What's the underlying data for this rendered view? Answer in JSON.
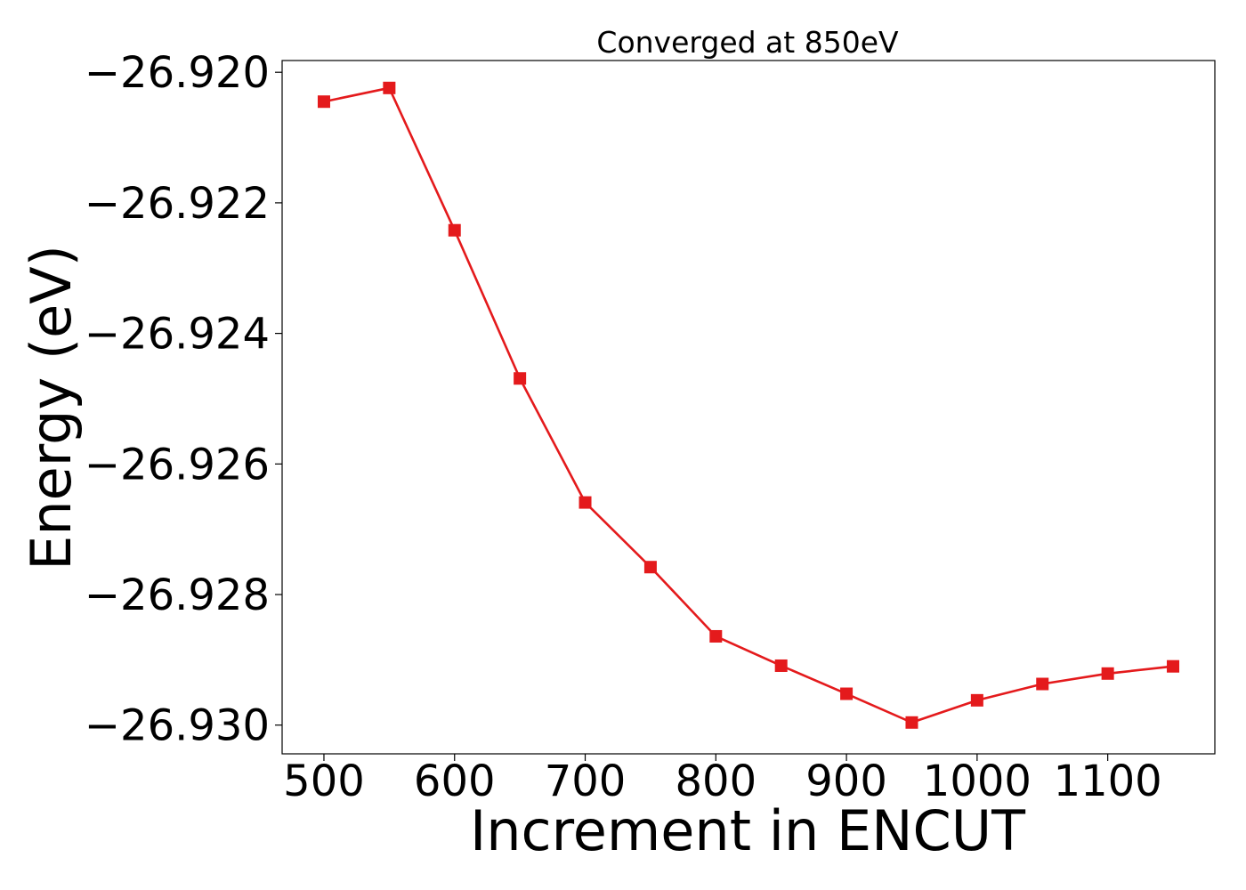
{
  "chart_data": {
    "type": "line",
    "title": "Converged at 850eV",
    "xlabel": "Increment in ENCUT",
    "ylabel": "Energy (eV)",
    "x": [
      500,
      550,
      600,
      650,
      700,
      750,
      800,
      850,
      900,
      950,
      1000,
      1050,
      1100,
      1150
    ],
    "series": [
      {
        "values": [
          -26.92045,
          -26.92024,
          -26.92242,
          -26.92469,
          -26.92659,
          -26.92758,
          -26.92864,
          -26.92909,
          -26.92952,
          -26.92996,
          -26.92962,
          -26.92937,
          -26.92921,
          -26.9291
        ],
        "color": "#e41a1c",
        "marker": "square"
      }
    ],
    "xlim": [
      468,
      1182
    ],
    "ylim": [
      -26.93044,
      -26.91982
    ],
    "xticks": [
      500,
      600,
      700,
      800,
      900,
      1000,
      1100
    ],
    "xtick_labels": [
      "500",
      "600",
      "700",
      "800",
      "900",
      "1000",
      "1100"
    ],
    "yticks": [
      -26.92,
      -26.922,
      -26.924,
      -26.926,
      -26.928,
      -26.93
    ],
    "ytick_labels": [
      "−26.920",
      "−26.922",
      "−26.924",
      "−26.926",
      "−26.928",
      "−26.930"
    ],
    "grid": false,
    "legend": "none"
  }
}
